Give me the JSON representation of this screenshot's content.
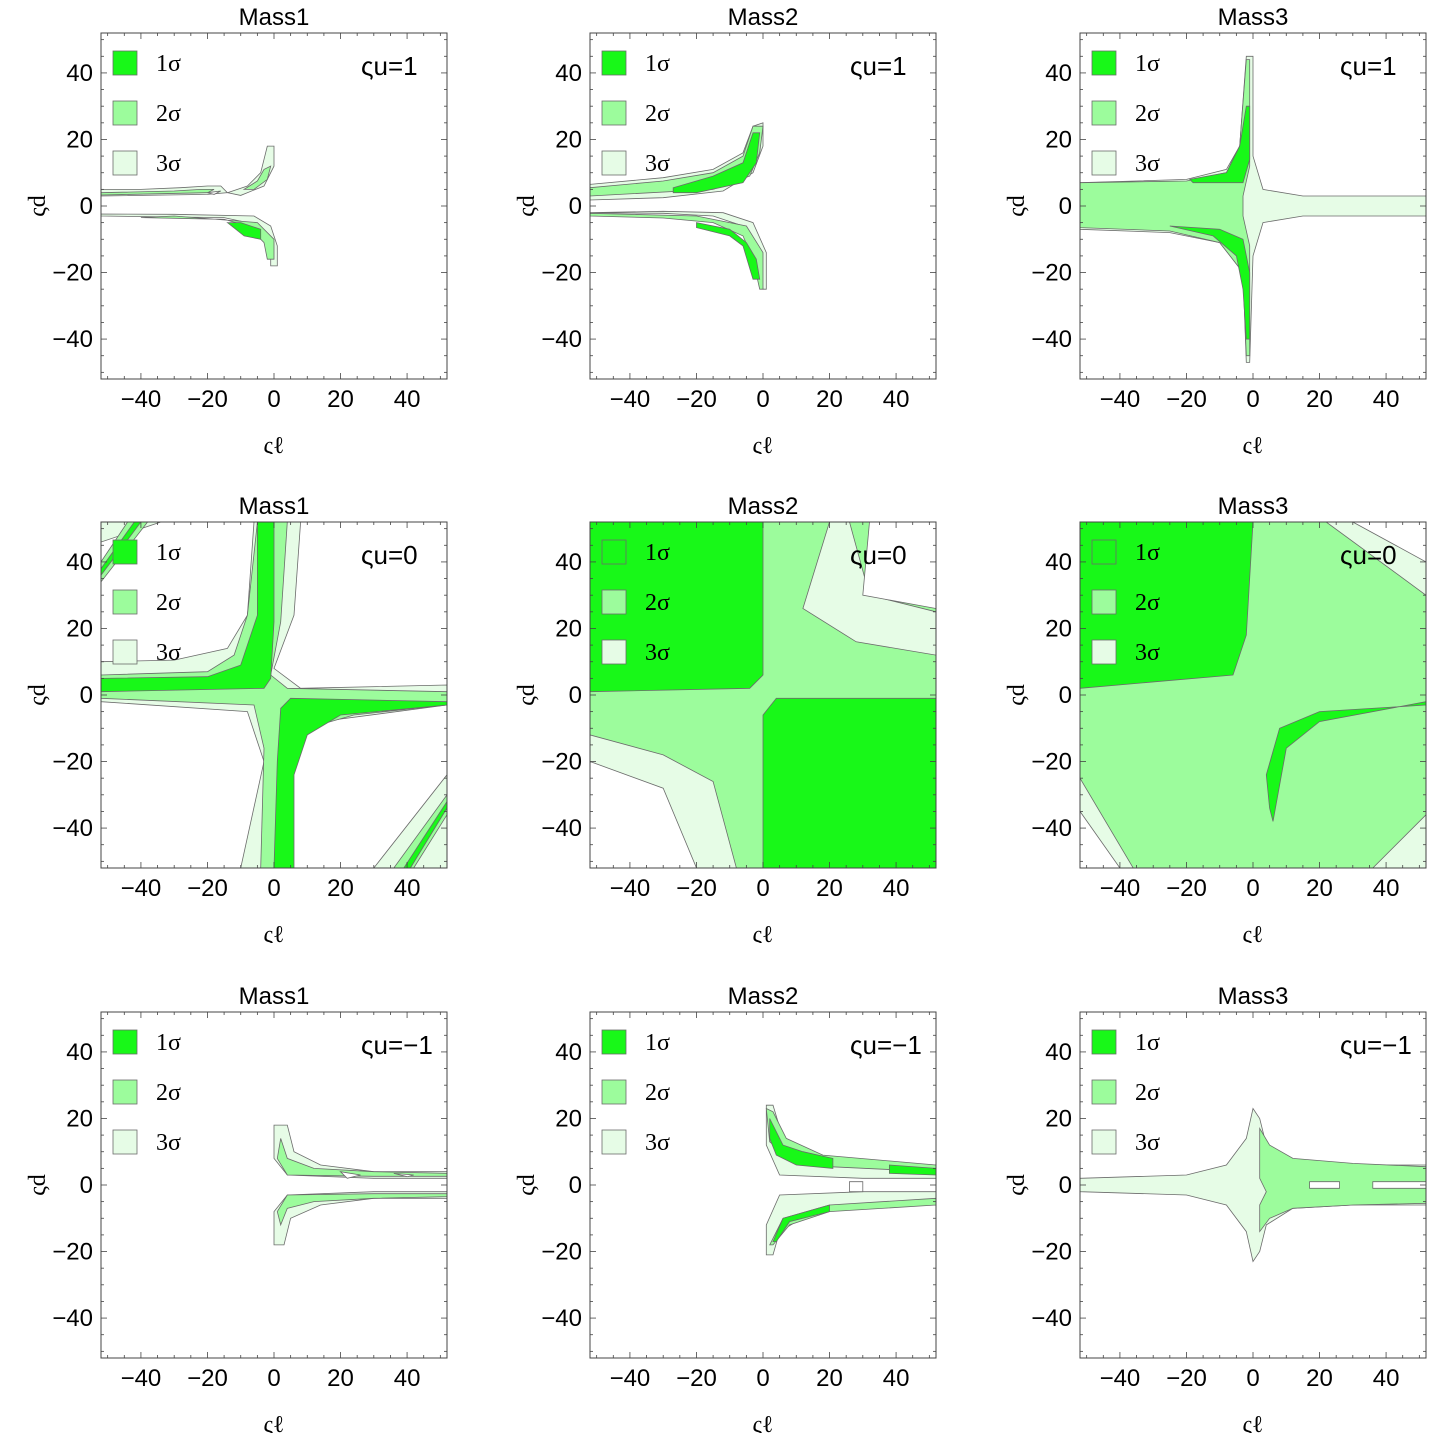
{
  "chart_data": [
    {
      "type": "contour",
      "title": "Mass1",
      "xlabel": "ςℓ",
      "ylabel": "ςd",
      "annotation": {
        "text": "ςu=1",
        "value": 1
      },
      "xlim": [
        -52,
        52
      ],
      "ylim": [
        -52,
        52
      ],
      "xticks": [
        -40,
        -20,
        0,
        20,
        40
      ],
      "yticks": [
        -40,
        -20,
        0,
        20,
        40
      ],
      "legend": [
        "1σ",
        "2σ",
        "3σ"
      ],
      "levels": [
        {
          "name": "3σ",
          "color": "#e6fce6"
        },
        {
          "name": "2σ",
          "color": "#9cfc9c"
        },
        {
          "name": "1σ",
          "color": "#18f818"
        }
      ]
    },
    {
      "type": "contour",
      "title": "Mass2",
      "xlabel": "ςℓ",
      "ylabel": "ςd",
      "annotation": {
        "text": "ςu=1",
        "value": 1
      },
      "xlim": [
        -52,
        52
      ],
      "ylim": [
        -52,
        52
      ],
      "xticks": [
        -40,
        -20,
        0,
        20,
        40
      ],
      "yticks": [
        -40,
        -20,
        0,
        20,
        40
      ],
      "legend": [
        "1σ",
        "2σ",
        "3σ"
      ],
      "levels": [
        {
          "name": "3σ",
          "color": "#e6fce6"
        },
        {
          "name": "2σ",
          "color": "#9cfc9c"
        },
        {
          "name": "1σ",
          "color": "#18f818"
        }
      ]
    },
    {
      "type": "contour",
      "title": "Mass3",
      "xlabel": "ςℓ",
      "ylabel": "ςd",
      "annotation": {
        "text": "ςu=1",
        "value": 1
      },
      "xlim": [
        -52,
        52
      ],
      "ylim": [
        -52,
        52
      ],
      "xticks": [
        -40,
        -20,
        0,
        20,
        40
      ],
      "yticks": [
        -40,
        -20,
        0,
        20,
        40
      ],
      "legend": [
        "1σ",
        "2σ",
        "3σ"
      ],
      "levels": [
        {
          "name": "3σ",
          "color": "#e6fce6"
        },
        {
          "name": "2σ",
          "color": "#9cfc9c"
        },
        {
          "name": "1σ",
          "color": "#18f818"
        }
      ]
    },
    {
      "type": "contour",
      "title": "Mass1",
      "xlabel": "ςℓ",
      "ylabel": "ςd",
      "annotation": {
        "text": "ςu=0",
        "value": 0
      },
      "xlim": [
        -52,
        52
      ],
      "ylim": [
        -52,
        52
      ],
      "xticks": [
        -40,
        -20,
        0,
        20,
        40
      ],
      "yticks": [
        -40,
        -20,
        0,
        20,
        40
      ],
      "legend": [
        "1σ",
        "2σ",
        "3σ"
      ],
      "levels": [
        {
          "name": "3σ",
          "color": "#e6fce6"
        },
        {
          "name": "2σ",
          "color": "#9cfc9c"
        },
        {
          "name": "1σ",
          "color": "#18f818"
        }
      ]
    },
    {
      "type": "contour",
      "title": "Mass2",
      "xlabel": "ςℓ",
      "ylabel": "ςd",
      "annotation": {
        "text": "ςu=0",
        "value": 0
      },
      "xlim": [
        -52,
        52
      ],
      "ylim": [
        -52,
        52
      ],
      "xticks": [
        -40,
        -20,
        0,
        20,
        40
      ],
      "yticks": [
        -40,
        -20,
        0,
        20,
        40
      ],
      "legend": [
        "1σ",
        "2σ",
        "3σ"
      ],
      "levels": [
        {
          "name": "3σ",
          "color": "#e6fce6"
        },
        {
          "name": "2σ",
          "color": "#9cfc9c"
        },
        {
          "name": "1σ",
          "color": "#18f818"
        }
      ]
    },
    {
      "type": "contour",
      "title": "Mass3",
      "xlabel": "ςℓ",
      "ylabel": "ςd",
      "annotation": {
        "text": "ςu=0",
        "value": 0
      },
      "xlim": [
        -52,
        52
      ],
      "ylim": [
        -52,
        52
      ],
      "xticks": [
        -40,
        -20,
        0,
        20,
        40
      ],
      "yticks": [
        -40,
        -20,
        0,
        20,
        40
      ],
      "legend": [
        "1σ",
        "2σ",
        "3σ"
      ],
      "levels": [
        {
          "name": "3σ",
          "color": "#e6fce6"
        },
        {
          "name": "2σ",
          "color": "#9cfc9c"
        },
        {
          "name": "1σ",
          "color": "#18f818"
        }
      ]
    },
    {
      "type": "contour",
      "title": "Mass1",
      "xlabel": "ςℓ",
      "ylabel": "ςd",
      "annotation": {
        "text": "ςu=−1",
        "value": -1
      },
      "xlim": [
        -52,
        52
      ],
      "ylim": [
        -52,
        52
      ],
      "xticks": [
        -40,
        -20,
        0,
        20,
        40
      ],
      "yticks": [
        -40,
        -20,
        0,
        20,
        40
      ],
      "legend": [
        "1σ",
        "2σ",
        "3σ"
      ],
      "levels": [
        {
          "name": "3σ",
          "color": "#e6fce6"
        },
        {
          "name": "2σ",
          "color": "#9cfc9c"
        },
        {
          "name": "1σ",
          "color": "#18f818"
        }
      ]
    },
    {
      "type": "contour",
      "title": "Mass2",
      "xlabel": "ςℓ",
      "ylabel": "ςd",
      "annotation": {
        "text": "ςu=−1",
        "value": -1
      },
      "xlim": [
        -52,
        52
      ],
      "ylim": [
        -52,
        52
      ],
      "xticks": [
        -40,
        -20,
        0,
        20,
        40
      ],
      "yticks": [
        -40,
        -20,
        0,
        20,
        40
      ],
      "legend": [
        "1σ",
        "2σ",
        "3σ"
      ],
      "levels": [
        {
          "name": "3σ",
          "color": "#e6fce6"
        },
        {
          "name": "2σ",
          "color": "#9cfc9c"
        },
        {
          "name": "1σ",
          "color": "#18f818"
        }
      ]
    },
    {
      "type": "contour",
      "title": "Mass3",
      "xlabel": "ςℓ",
      "ylabel": "ςd",
      "annotation": {
        "text": "ςu=−1",
        "value": -1
      },
      "xlim": [
        -52,
        52
      ],
      "ylim": [
        -52,
        52
      ],
      "xticks": [
        -40,
        -20,
        0,
        20,
        40
      ],
      "yticks": [
        -40,
        -20,
        0,
        20,
        40
      ],
      "legend": [
        "1σ",
        "2σ",
        "3σ"
      ],
      "levels": [
        {
          "name": "3σ",
          "color": "#e6fce6"
        },
        {
          "name": "2σ",
          "color": "#9cfc9c"
        },
        {
          "name": "1σ",
          "color": "#18f818"
        }
      ]
    }
  ]
}
